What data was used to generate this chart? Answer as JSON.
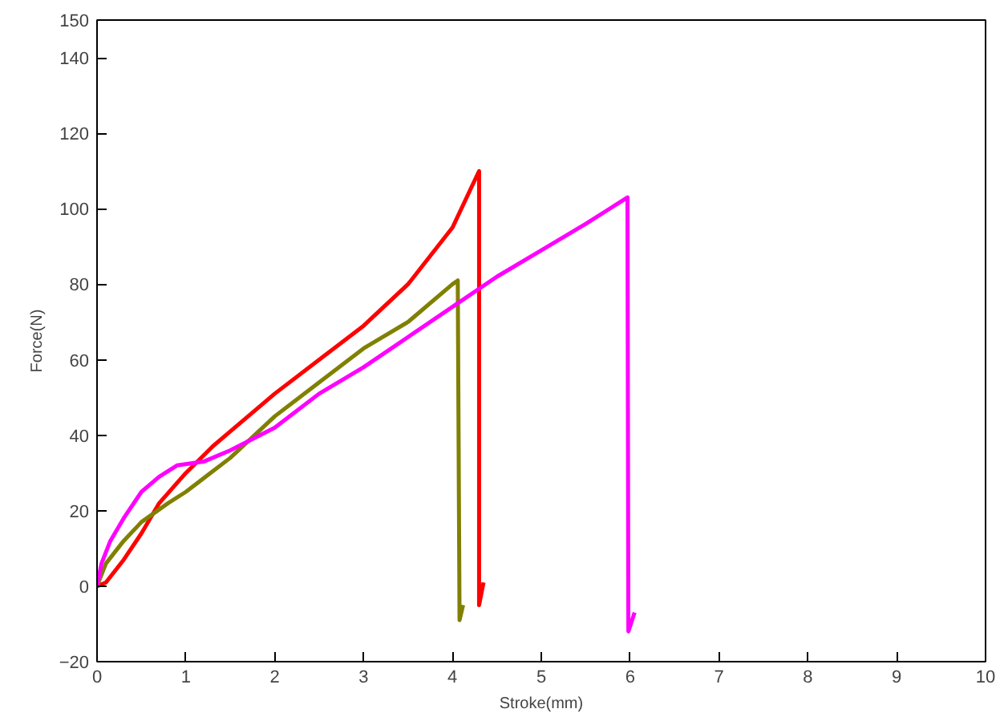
{
  "chart_data": {
    "type": "line",
    "xlabel": "Stroke(mm)",
    "ylabel": "Force(N)",
    "xlim": [
      0,
      10
    ],
    "ylim": [
      -20,
      150
    ],
    "xticks": [
      0,
      1,
      2,
      3,
      4,
      5,
      6,
      7,
      8,
      9,
      10
    ],
    "yticks": [
      -20,
      0,
      20,
      40,
      60,
      80,
      100,
      120,
      140,
      150
    ],
    "grid": false,
    "series": [
      {
        "color": "#ff0000",
        "x": [
          0,
          0.1,
          0.3,
          0.5,
          0.7,
          1,
          1.3,
          1.5,
          2,
          2.5,
          3,
          3.5,
          4,
          4.3,
          4.3,
          4.35
        ],
        "values": [
          0,
          1,
          7,
          14,
          22,
          30,
          37,
          41,
          51,
          60,
          69,
          80,
          95,
          110,
          -5,
          1
        ]
      },
      {
        "color": "#808000",
        "x": [
          0,
          0.1,
          0.3,
          0.5,
          0.8,
          1,
          1.5,
          2,
          2.5,
          3,
          3.5,
          4,
          4.06,
          4.08,
          4.12
        ],
        "values": [
          0,
          6,
          12,
          17,
          22,
          25,
          34,
          45,
          54,
          63,
          70,
          80,
          81,
          -9,
          -5
        ]
      },
      {
        "color": "#ff00ff",
        "x": [
          0,
          0.05,
          0.15,
          0.3,
          0.5,
          0.7,
          0.9,
          1.2,
          1.5,
          2,
          2.5,
          3,
          3.5,
          4,
          4.5,
          5,
          5.5,
          5.97,
          5.98,
          6.05
        ],
        "values": [
          0,
          6,
          12,
          18,
          25,
          29,
          32,
          33,
          36,
          42,
          51,
          58,
          66,
          74,
          82,
          89,
          96,
          103,
          -12,
          -7
        ]
      }
    ]
  }
}
